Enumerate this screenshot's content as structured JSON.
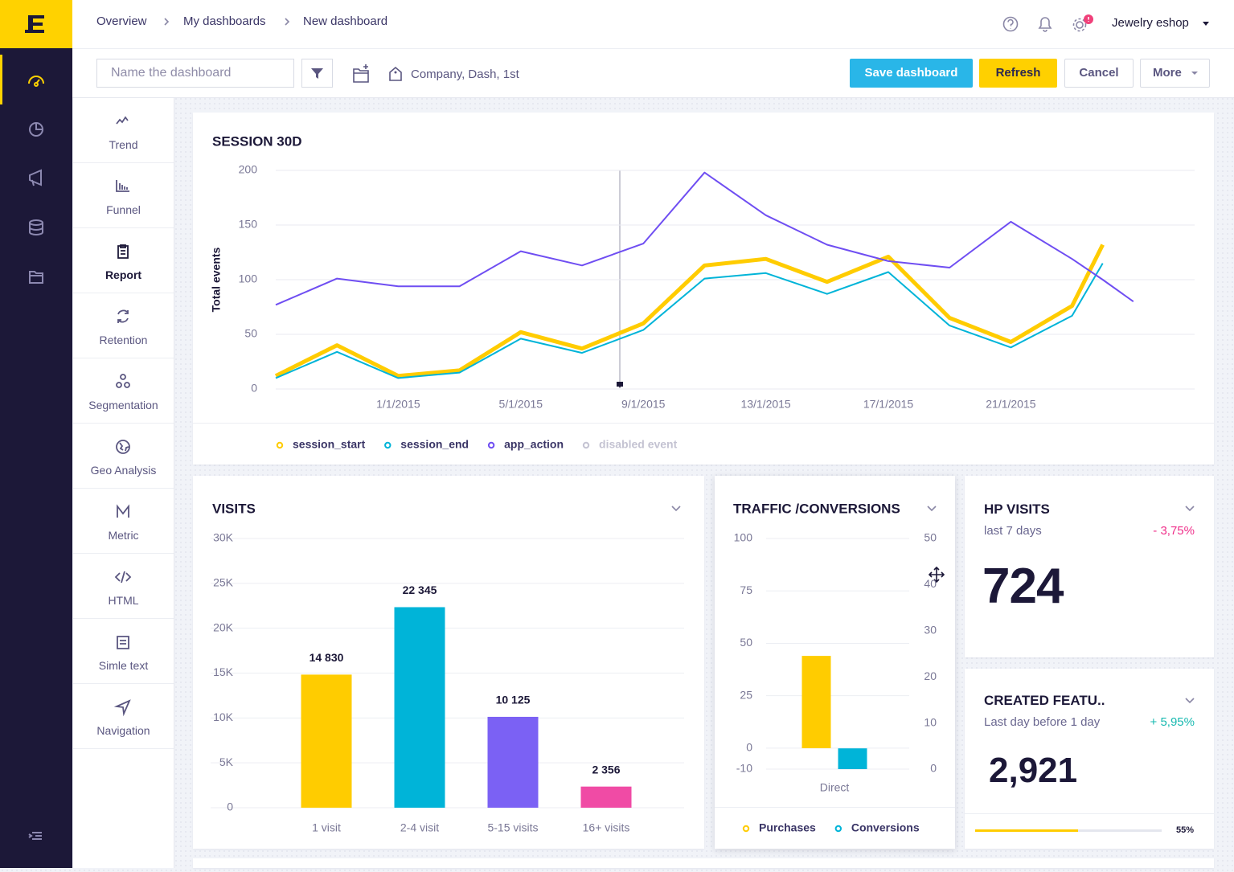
{
  "header": {
    "breadcrumbs": [
      "Overview",
      "My dashboards",
      "New dashboard"
    ],
    "account": "Jewelry eshop"
  },
  "toolbar": {
    "name_placeholder": "Name the dashboard",
    "tags": "Company, Dash, 1st",
    "buttons": [
      "Save dashboard",
      "Refresh",
      "Cancel",
      "More"
    ]
  },
  "widgets": [
    "Trend",
    "Funnel",
    "Report",
    "Retention",
    "Segmentation",
    "Geo Analysis",
    "Metric",
    "HTML",
    "Simle text",
    "Navigation"
  ],
  "chart_data": [
    {
      "type": "line",
      "title": "SESSION 30D",
      "y_label": "Total events",
      "x": [
        "2014-12-28",
        "2014-12-30",
        "2015-01-01",
        "2015-01-03",
        "2015-01-05",
        "2015-01-07",
        "2015-01-09",
        "2015-01-11",
        "2015-01-13",
        "2015-01-15",
        "2015-01-17",
        "2015-01-19",
        "2015-01-21",
        "2015-01-23",
        "2015-01-24",
        "2015-01-25"
      ],
      "xlim": [
        "2014-12-28",
        "2015-01-27"
      ],
      "xticks": [
        {
          "value": "2015-01-01",
          "label": "1/1/2015"
        },
        {
          "value": "2015-01-05",
          "label": "5/1/2015"
        },
        {
          "value": "2015-01-09",
          "label": "9/1/2015"
        },
        {
          "value": "2015-01-13",
          "label": "13/1/2015"
        },
        {
          "value": "2015-01-17",
          "label": "17/1/2015"
        },
        {
          "value": "2015-01-21",
          "label": "21/1/2015"
        }
      ],
      "ylim": [
        0,
        200
      ],
      "yticks": [
        0,
        50,
        100,
        150,
        200
      ],
      "grid": true,
      "series": [
        {
          "name": "session_start",
          "color": "#ffcc00",
          "values": [
            12,
            40,
            12,
            17,
            52,
            37,
            60,
            113,
            119,
            98,
            121,
            65,
            43,
            76,
            132,
            null
          ]
        },
        {
          "name": "session_end",
          "color": "#00b4d8",
          "values": [
            10,
            34,
            10,
            15,
            46,
            33,
            54,
            101,
            106,
            87,
            107,
            58,
            38,
            67,
            115,
            null
          ]
        },
        {
          "name": "app_action",
          "color": "#6f4ef2",
          "values": [
            77,
            101,
            94,
            94,
            126,
            113,
            133,
            198,
            159,
            132,
            117,
            111,
            153,
            119,
            100,
            80
          ]
        }
      ],
      "inactive_legend": "disabled event"
    },
    {
      "type": "bar",
      "title": "VISITS",
      "categories": [
        "1 visit",
        "2-4 visit",
        "5-15 visits",
        "16+ visits"
      ],
      "values": [
        14830,
        22345,
        10125,
        2356
      ],
      "value_labels": [
        "14 830",
        "22 345",
        "10 125",
        "2 356"
      ],
      "colors": [
        "#ffcc00",
        "#00b4d8",
        "#7b61f4",
        "#f04ba5"
      ],
      "ylim": [
        0,
        30000
      ],
      "yticks": [
        0,
        {
          "value": 5000,
          "label": "5K"
        },
        {
          "value": 10000,
          "label": "10K"
        },
        {
          "value": 15000,
          "label": "15K"
        },
        {
          "value": 20000,
          "label": "20K"
        },
        {
          "value": 25000,
          "label": "25K"
        },
        {
          "value": 30000,
          "label": "30K"
        }
      ],
      "grid": true
    },
    {
      "type": "bar",
      "title": "TRAFFIC /CONVERSIONS",
      "categories": [
        "Direct"
      ],
      "series": [
        {
          "name": "Purchases",
          "color": "#ffcc00",
          "values": [
            44
          ]
        },
        {
          "name": "Conversions",
          "color": "#00b4d8",
          "values": [
            4.5
          ],
          "axis": "y2"
        }
      ],
      "ylim": [
        -10,
        100
      ],
      "yticks": [
        -10,
        0,
        25,
        50,
        75,
        100
      ],
      "y2lim": [
        0,
        50
      ],
      "y2ticks": [
        0,
        10,
        20,
        30,
        40,
        50
      ],
      "grid": true
    }
  ],
  "kpis": [
    {
      "title": "HP VISITS",
      "subtitle": "last 7 days",
      "change": "- 3,75%",
      "value": "724"
    },
    {
      "title": "CREATED FEATU..",
      "subtitle": "Last day before 1 day",
      "change": "+ 5,95%",
      "value": "2,921",
      "progress": {
        "value": 55,
        "label": "55%"
      }
    }
  ]
}
